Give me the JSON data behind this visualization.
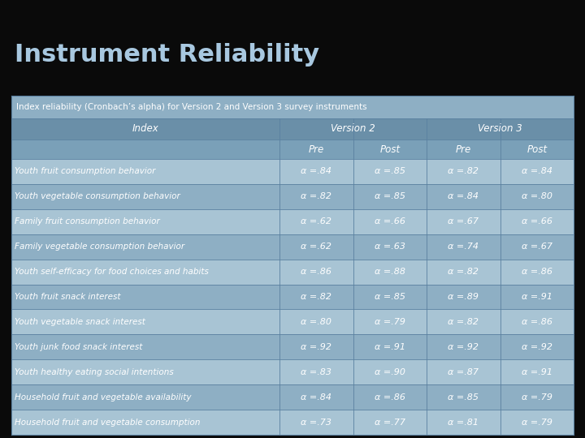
{
  "title": "Instrument Reliability",
  "subtitle": "Index reliability (Cronbach’s alpha) for Version 2 and Version 3 survey instruments",
  "col_header1": "Index",
  "col_header2": "Version 2",
  "col_header3": "Version 3",
  "sub_headers": [
    "Pre",
    "Post",
    "Pre",
    "Post"
  ],
  "rows": [
    [
      "Youth fruit consumption behavior",
      "α =.84",
      "α =.85",
      "α =.82",
      "α =.84"
    ],
    [
      "Youth vegetable consumption behavior",
      "α =.82",
      "α =.85",
      "α =.84",
      "α =.80"
    ],
    [
      "Family fruit consumption behavior",
      "α =.62",
      "α =.66",
      "α =.67",
      "α =.66"
    ],
    [
      "Family vegetable consumption behavior",
      "α =.62",
      "α =.63",
      "α =.74",
      "α =.67"
    ],
    [
      "Youth self-efficacy for food choices and habits",
      "α =.86",
      "α =.88",
      "α =.82",
      "α =.86"
    ],
    [
      "Youth fruit snack interest",
      "α =.82",
      "α =.85",
      "α =.89",
      "α =.91"
    ],
    [
      "Youth vegetable snack interest",
      "α =.80",
      "α =.79",
      "α =.82",
      "α =.86"
    ],
    [
      "Youth junk food snack interest",
      "α =.92",
      "α =.91",
      "α =.92",
      "α =.92"
    ],
    [
      "Youth healthy eating social intentions",
      "α =.83",
      "α =.90",
      "α =.87",
      "α =.91"
    ],
    [
      "Household fruit and vegetable availability",
      "α =.84",
      "α =.86",
      "α =.85",
      "α =.79"
    ],
    [
      "Household fruit and vegetable consumption",
      "α =.73",
      "α =.77",
      "α =.81",
      "α =.79"
    ]
  ],
  "bg_color": "#0a0a0a",
  "title_color": "#a8c8e0",
  "table_bg": "#8eafc4",
  "header_row_bg": "#6a8fa8",
  "subheader_row_bg": "#7aa0b8",
  "odd_row_bg": "#a8c4d4",
  "even_row_bg": "#8eafc4",
  "text_color": "#ffffff",
  "line_color": "#5a80a0"
}
